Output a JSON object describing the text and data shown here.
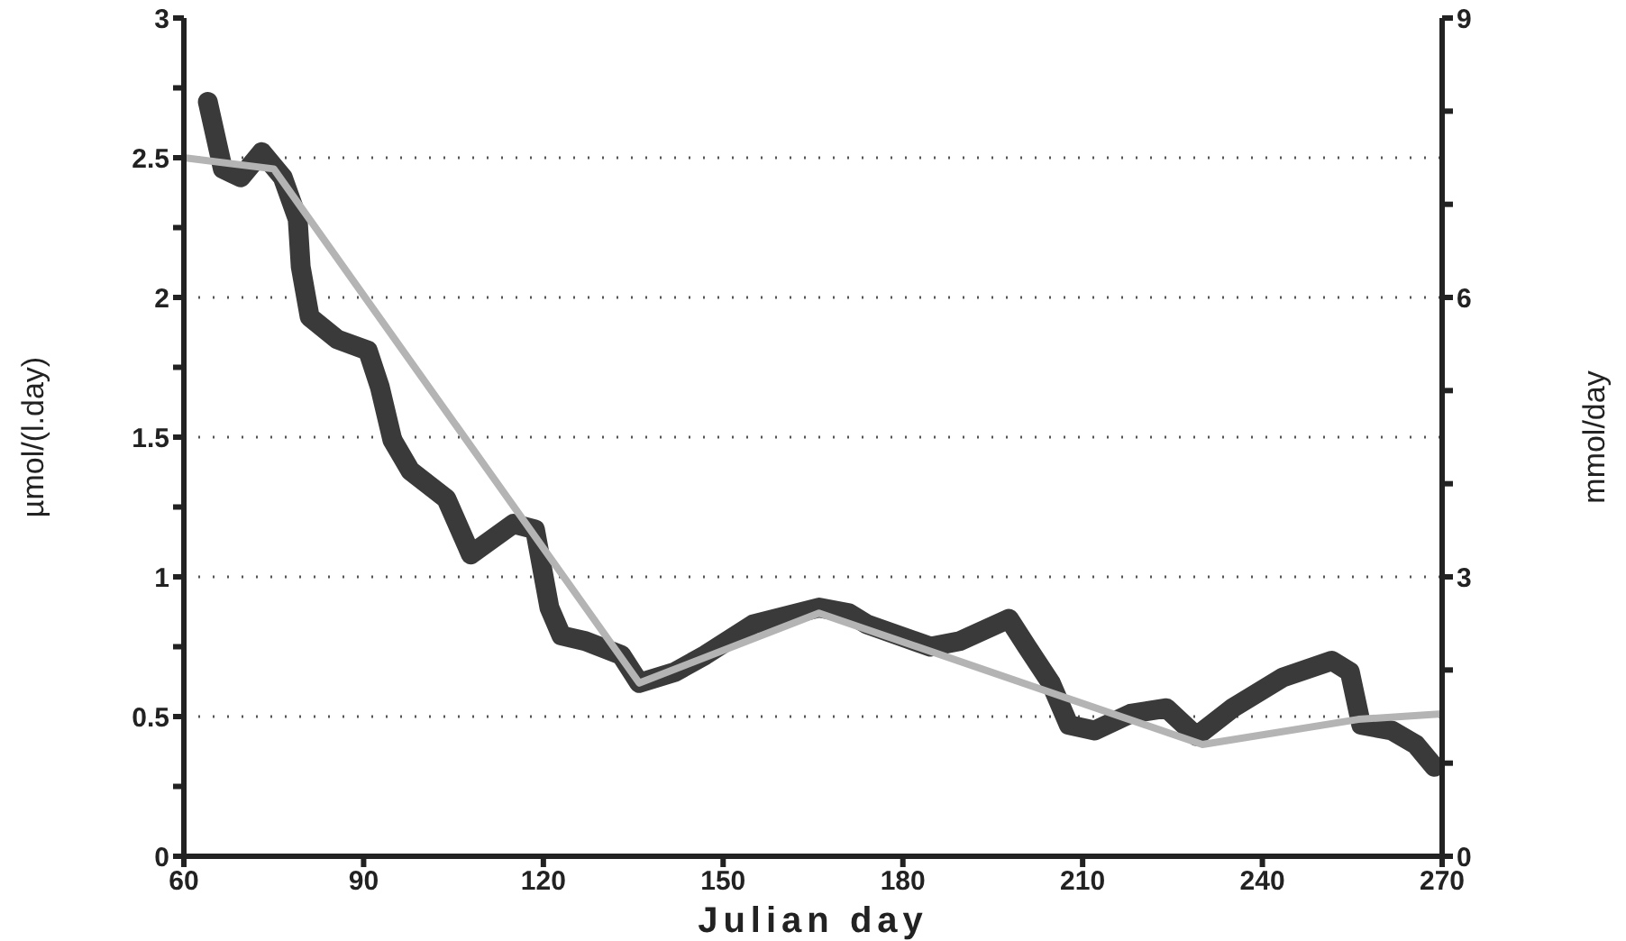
{
  "chart_data": {
    "type": "line",
    "xlabel": "Julian day",
    "ylabel": "µmol/(l.day)",
    "y2label": "mmol/day",
    "xlim": [
      60,
      270
    ],
    "xticks": [
      60,
      90,
      120,
      150,
      180,
      210,
      240,
      270
    ],
    "ylim": [
      0,
      3
    ],
    "yticks": [
      0,
      {
        "value": 0.25,
        "label": null
      },
      0.5,
      {
        "value": 0.75,
        "label": null
      },
      1,
      {
        "value": 1.25,
        "label": null
      },
      1.5,
      {
        "value": 1.75,
        "label": null
      },
      2,
      {
        "value": 2.25,
        "label": null
      },
      2.5,
      {
        "value": 2.75,
        "label": null
      },
      3
    ],
    "y2lim": [
      0,
      9
    ],
    "y2ticks": [
      0,
      {
        "value": 1,
        "label": null
      },
      {
        "value": 2,
        "label": null
      },
      3,
      {
        "value": 4,
        "label": null
      },
      {
        "value": 5,
        "label": null
      },
      6,
      {
        "value": 7,
        "label": null
      },
      {
        "value": 8,
        "label": null
      },
      9
    ],
    "grid": "y",
    "marker": "none",
    "line_style": "solid",
    "series": [
      {
        "color": "#3a3a3a",
        "x": [
          64,
          66.5,
          69.5,
          73,
          76.5,
          79,
          79.5,
          81,
          85.6,
          90.7,
          92.7,
          94.8,
          97.8,
          103.8,
          107.9,
          115,
          118.6,
          121,
          123,
          127,
          133,
          136,
          142,
          147,
          155,
          166,
          171,
          174,
          184.6,
          189.5,
          197.7,
          200.7,
          204.7,
          207.7,
          212,
          218,
          224,
          229,
          235,
          243.4,
          251.6,
          254.6,
          256.5,
          261.6,
          265.6,
          268.7
        ],
        "values": [
          2.7,
          2.46,
          2.43,
          2.52,
          2.43,
          2.28,
          2.11,
          1.93,
          1.85,
          1.81,
          1.68,
          1.49,
          1.38,
          1.28,
          1.08,
          1.19,
          1.17,
          0.89,
          0.79,
          0.77,
          0.72,
          0.62,
          0.66,
          0.72,
          0.83,
          0.89,
          0.87,
          0.83,
          0.75,
          0.77,
          0.85,
          0.75,
          0.62,
          0.47,
          0.45,
          0.51,
          0.53,
          0.43,
          0.53,
          0.64,
          0.7,
          0.66,
          0.47,
          0.45,
          0.4,
          0.32
        ]
      },
      {
        "color": "#b4b4b4",
        "x": [
          60,
          75,
          136,
          166,
          230,
          256,
          270
        ],
        "values": [
          2.5,
          2.46,
          0.62,
          0.87,
          0.4,
          0.49,
          0.51
        ]
      }
    ]
  }
}
